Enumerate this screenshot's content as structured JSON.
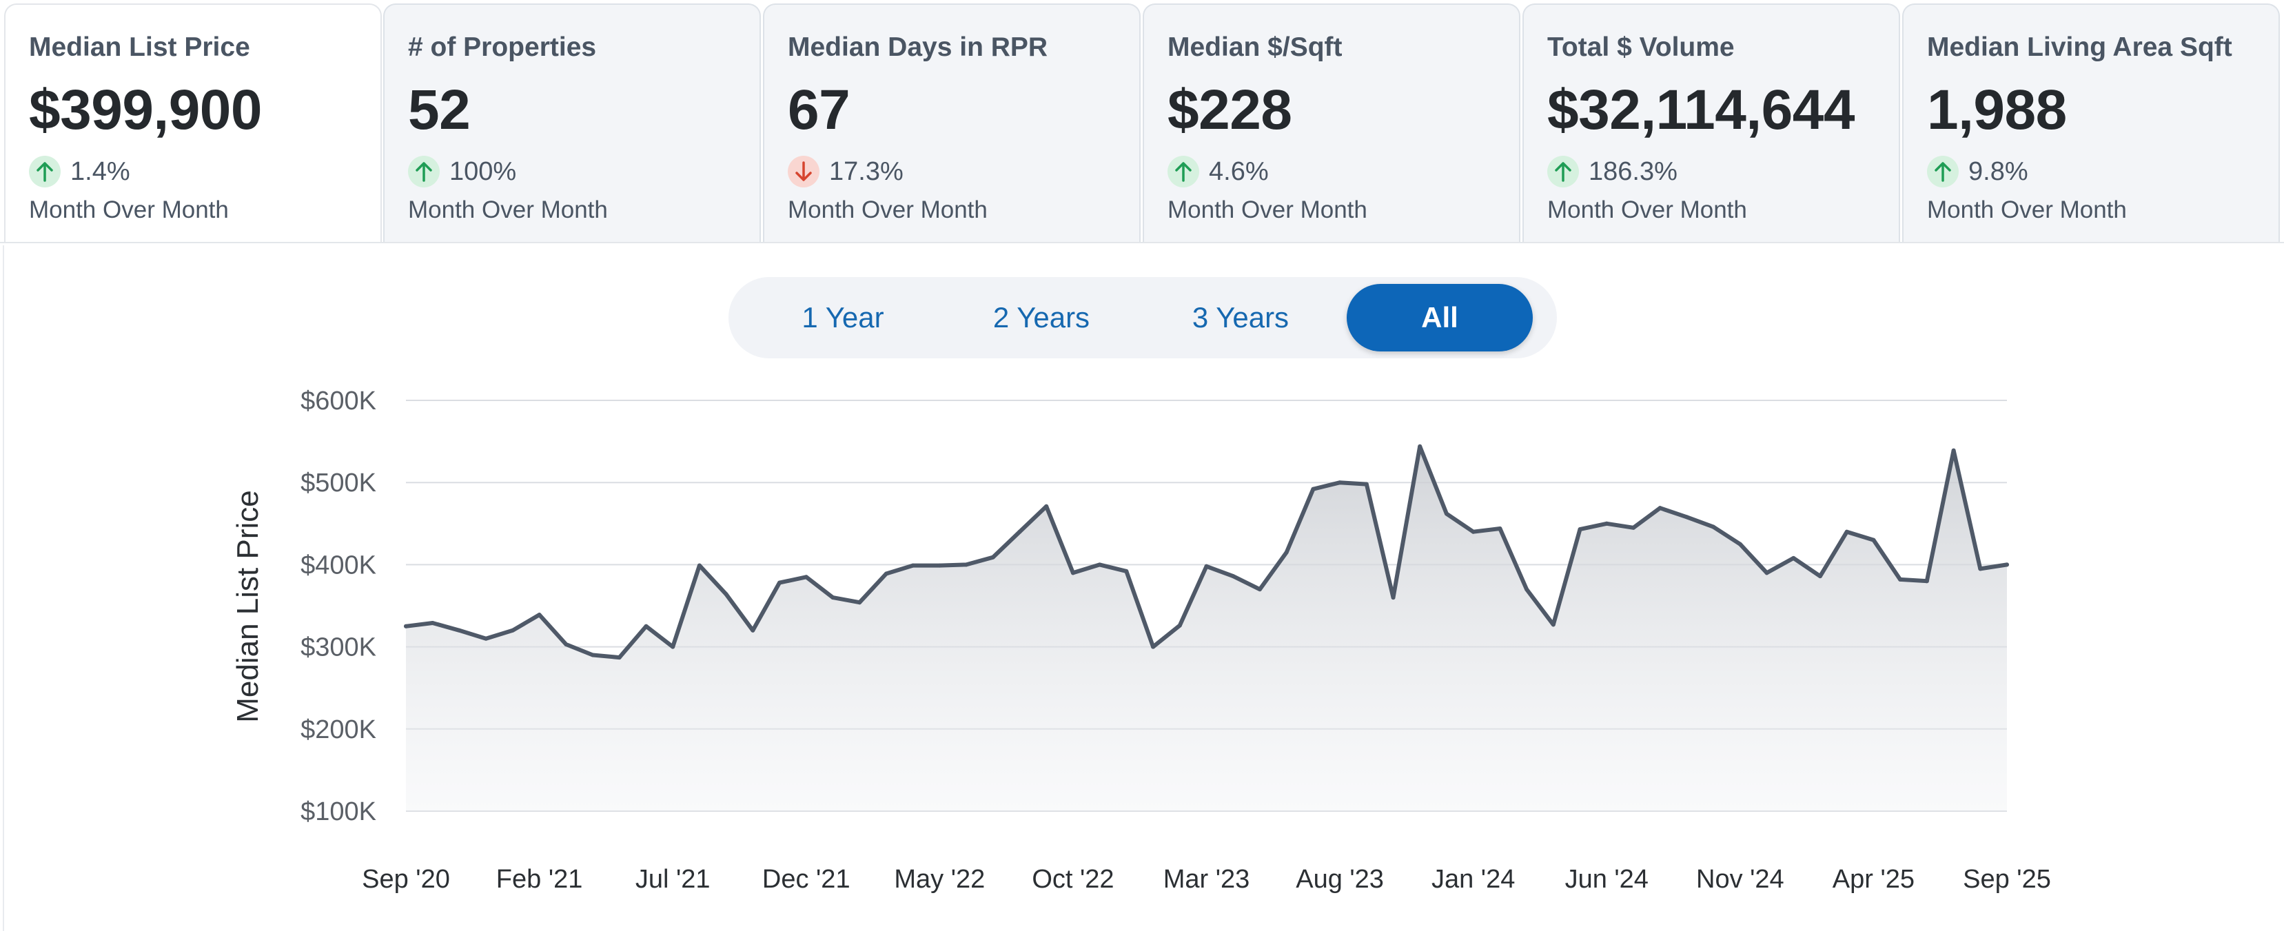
{
  "metrics": [
    {
      "label": "Median List Price",
      "value": "$399,900",
      "direction": "up",
      "change": "1.4%",
      "period": "Month Over Month"
    },
    {
      "label": "# of Properties",
      "value": "52",
      "direction": "up",
      "change": "100%",
      "period": "Month Over Month"
    },
    {
      "label": "Median Days in RPR",
      "value": "67",
      "direction": "down",
      "change": "17.3%",
      "period": "Month Over Month"
    },
    {
      "label": "Median $/Sqft",
      "value": "$228",
      "direction": "up",
      "change": "4.6%",
      "period": "Month Over Month"
    },
    {
      "label": "Total $ Volume",
      "value": "$32,114,644",
      "direction": "up",
      "change": "186.3%",
      "period": "Month Over Month"
    },
    {
      "label": "Median Living Area Sqft",
      "value": "1,988",
      "direction": "up",
      "change": "9.8%",
      "period": "Month Over Month"
    }
  ],
  "range_selector": {
    "options": [
      "1 Year",
      "2 Years",
      "3 Years",
      "All"
    ],
    "selected": "All"
  },
  "colors": {
    "accent": "#0d66b8",
    "line": "#4f5968",
    "up_bg": "#d6f1df",
    "up_arrow": "#1f9d55",
    "down_bg": "#f9d6d1",
    "down_arrow": "#d6452f"
  },
  "chart_data": {
    "type": "area",
    "ylabel": "Median List Price",
    "ylim": [
      100000,
      600000
    ],
    "yticks": [
      100000,
      200000,
      300000,
      400000,
      500000,
      600000
    ],
    "ytick_labels": [
      "$100K",
      "$200K",
      "$300K",
      "$400K",
      "$500K",
      "$600K"
    ],
    "xtick_labels": [
      "Sep '20",
      "Feb '21",
      "Jul '21",
      "Dec '21",
      "May '22",
      "Oct '22",
      "Mar '23",
      "Aug '23",
      "Jan '24",
      "Jun '24",
      "Nov '24",
      "Apr '25",
      "Sep '25"
    ],
    "grid": true,
    "x": [
      "Sep '20",
      "Oct '20",
      "Nov '20",
      "Dec '20",
      "Jan '21",
      "Feb '21",
      "Mar '21",
      "Apr '21",
      "May '21",
      "Jun '21",
      "Jul '21",
      "Aug '21",
      "Sep '21",
      "Oct '21",
      "Nov '21",
      "Dec '21",
      "Jan '22",
      "Feb '22",
      "Mar '22",
      "Apr '22",
      "May '22",
      "Jun '22",
      "Jul '22",
      "Aug '22",
      "Sep '22",
      "Oct '22",
      "Nov '22",
      "Dec '22",
      "Jan '23",
      "Feb '23",
      "Mar '23",
      "Apr '23",
      "May '23",
      "Jun '23",
      "Jul '23",
      "Aug '23",
      "Sep '23",
      "Oct '23",
      "Nov '23",
      "Dec '23",
      "Jan '24",
      "Feb '24",
      "Mar '24",
      "Apr '24",
      "May '24",
      "Jun '24",
      "Jul '24",
      "Aug '24",
      "Sep '24",
      "Oct '24",
      "Nov '24",
      "Dec '24",
      "Jan '25",
      "Feb '25",
      "Mar '25",
      "Apr '25",
      "May '25",
      "Jun '25",
      "Jul '25",
      "Aug '25",
      "Sep '25"
    ],
    "series": [
      {
        "values": [
          325000,
          329000,
          320000,
          310000,
          320000,
          339000,
          303000,
          290000,
          287000,
          325000,
          300000,
          399000,
          364000,
          320000,
          378000,
          385000,
          360000,
          354000,
          389000,
          399000,
          399000,
          400000,
          409000,
          440000,
          471000,
          390000,
          400000,
          392000,
          300000,
          326000,
          398000,
          386000,
          370000,
          415000,
          492000,
          500000,
          498000,
          360000,
          544000,
          462000,
          440000,
          444000,
          370000,
          327000,
          443000,
          450000,
          445000,
          469000,
          458000,
          446000,
          425000,
          390000,
          408000,
          386000,
          440000,
          430000,
          382000,
          380000,
          539000,
          395000,
          400000
        ]
      }
    ]
  }
}
